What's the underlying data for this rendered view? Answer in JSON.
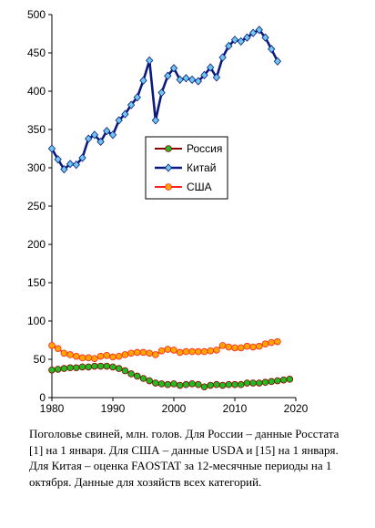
{
  "caption": "Поголовье свиней, млн. голов. Для  России – данные Росстата [1]  на 1 января. Для  США – данные USDA и [15] на 1 января. Для Китая – оценка FAOSTAT за 12-месячные периоды на 1 октября. Данные для хозяйств всех категорий.",
  "chart_data": {
    "type": "line",
    "xlim": [
      1980,
      2020
    ],
    "ylim": [
      0,
      500
    ],
    "x_ticks": [
      1980,
      1990,
      2000,
      2010,
      2020
    ],
    "y_ticks": [
      0,
      50,
      100,
      150,
      200,
      250,
      300,
      350,
      400,
      450,
      500
    ],
    "grid": false,
    "legend_position": "center",
    "series": [
      {
        "name": "Россия",
        "color": "#8B0000",
        "marker_color": "#22BB22",
        "marker": "circle",
        "x": [
          1980,
          1981,
          1982,
          1983,
          1984,
          1985,
          1986,
          1987,
          1988,
          1989,
          1990,
          1991,
          1992,
          1993,
          1994,
          1995,
          1996,
          1997,
          1998,
          1999,
          2000,
          2001,
          2002,
          2003,
          2004,
          2005,
          2006,
          2007,
          2008,
          2009,
          2010,
          2011,
          2012,
          2013,
          2014,
          2015,
          2016,
          2017,
          2018,
          2019
        ],
        "values": [
          36,
          37,
          38,
          39,
          39,
          40,
          40,
          41,
          41,
          41,
          40,
          38,
          35,
          31,
          28,
          25,
          22,
          19,
          18,
          17,
          18,
          16,
          17,
          18,
          17,
          14,
          16,
          17,
          16,
          17,
          17,
          17,
          19,
          19,
          19,
          20,
          21,
          22,
          23,
          24
        ]
      },
      {
        "name": "Китай",
        "color": "#0A1A80",
        "marker_color": "#6EC8EE",
        "marker": "diamond",
        "x": [
          1980,
          1981,
          1982,
          1983,
          1984,
          1985,
          1986,
          1987,
          1988,
          1989,
          1990,
          1991,
          1992,
          1993,
          1994,
          1995,
          1996,
          1997,
          1998,
          1999,
          2000,
          2001,
          2002,
          2003,
          2004,
          2005,
          2006,
          2007,
          2008,
          2009,
          2010,
          2011,
          2012,
          2013,
          2014,
          2015,
          2016,
          2017
        ],
        "values": [
          325,
          311,
          298,
          305,
          304,
          313,
          338,
          343,
          334,
          348,
          343,
          362,
          370,
          382,
          392,
          414,
          440,
          362,
          398,
          420,
          430,
          415,
          417,
          415,
          413,
          421,
          431,
          418,
          444,
          459,
          467,
          465,
          470,
          476,
          480,
          470,
          455,
          439
        ]
      },
      {
        "name": "США",
        "color": "#FF2222",
        "marker_color": "#FFA500",
        "marker": "circle",
        "x": [
          1980,
          1981,
          1982,
          1983,
          1984,
          1985,
          1986,
          1987,
          1988,
          1989,
          1990,
          1991,
          1992,
          1993,
          1994,
          1995,
          1996,
          1997,
          1998,
          1999,
          2000,
          2001,
          2002,
          2003,
          2004,
          2005,
          2006,
          2007,
          2008,
          2009,
          2010,
          2011,
          2012,
          2013,
          2014,
          2015,
          2016,
          2017
        ],
        "values": [
          68,
          64,
          58,
          56,
          54,
          52,
          52,
          51,
          54,
          55,
          53,
          54,
          56,
          58,
          59,
          59,
          58,
          56,
          61,
          63,
          62,
          59,
          60,
          60,
          60,
          60,
          61,
          62,
          68,
          66,
          65,
          65,
          67,
          66,
          67,
          70,
          72,
          73
        ]
      }
    ]
  }
}
